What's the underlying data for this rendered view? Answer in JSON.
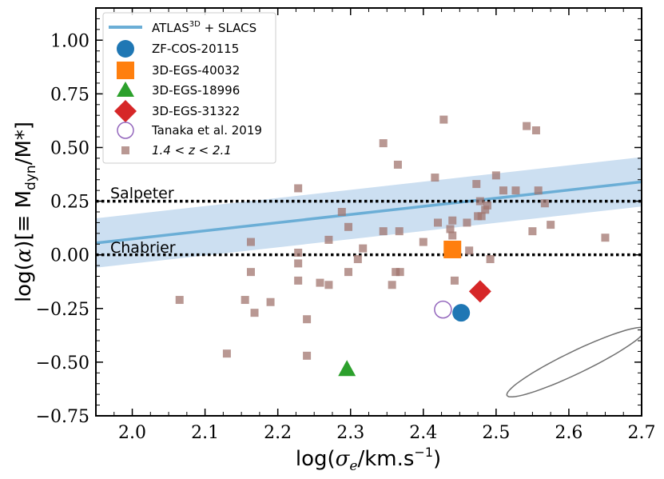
{
  "chart_data": {
    "type": "scatter",
    "x_axis": {
      "label": "log(σ_e/km.s⁻¹)",
      "range": [
        1.95,
        2.7
      ],
      "ticks": [
        2.0,
        2.1,
        2.2,
        2.3,
        2.4,
        2.5,
        2.6,
        2.7
      ],
      "tick_labels": [
        "2.0",
        "2.1",
        "2.2",
        "2.3",
        "2.4",
        "2.5",
        "2.6",
        "2.7"
      ]
    },
    "y_axis": {
      "label": "log(α)[≡ M_dyn/M*]",
      "range": [
        -0.75,
        1.15
      ],
      "ticks": [
        -0.75,
        -0.5,
        -0.25,
        0.0,
        0.25,
        0.5,
        0.75,
        1.0
      ],
      "tick_labels": [
        "−0.75",
        "−0.50",
        "−0.25",
        "0.00",
        "0.25",
        "0.50",
        "0.75",
        "1.00"
      ]
    },
    "reference_lines": [
      {
        "name": "Salpeter",
        "y": 0.25,
        "style": "dotted",
        "color": "#000000"
      },
      {
        "name": "Chabrier",
        "y": 0.0,
        "style": "dotted",
        "color": "#000000"
      }
    ],
    "fit": {
      "name": "ATLAS3D + SLACS",
      "x": [
        1.95,
        2.7
      ],
      "y": [
        0.055,
        0.34
      ],
      "band_halfwidth": 0.115,
      "line_color": "#6baed6",
      "band_color": "#c6dbef"
    },
    "series": [
      {
        "name": "ZF-COS-20115",
        "marker": "circle",
        "color": "#1f77b4",
        "points": [
          [
            2.452,
            -0.27
          ]
        ]
      },
      {
        "name": "3D-EGS-40032",
        "marker": "square",
        "color": "#ff7f0e",
        "points": [
          [
            2.44,
            0.025
          ]
        ]
      },
      {
        "name": "3D-EGS-18996",
        "marker": "triangle",
        "color": "#2ca02c",
        "points": [
          [
            2.295,
            -0.535
          ]
        ]
      },
      {
        "name": "3D-EGS-31322",
        "marker": "diamond",
        "color": "#d62728",
        "points": [
          [
            2.478,
            -0.17
          ]
        ]
      },
      {
        "name": "Tanaka et al. 2019",
        "marker": "open-circle",
        "color": "#9467bd",
        "points": [
          [
            2.427,
            -0.255
          ]
        ]
      },
      {
        "name": "1.4 < z < 2.1",
        "marker": "small-square",
        "color": "#a1766f",
        "points": [
          [
            2.065,
            -0.21
          ],
          [
            2.13,
            -0.46
          ],
          [
            2.155,
            -0.21
          ],
          [
            2.163,
            0.06
          ],
          [
            2.163,
            -0.08
          ],
          [
            2.168,
            -0.27
          ],
          [
            2.19,
            -0.22
          ],
          [
            2.228,
            0.31
          ],
          [
            2.228,
            0.01
          ],
          [
            2.228,
            -0.04
          ],
          [
            2.228,
            -0.12
          ],
          [
            2.24,
            -0.3
          ],
          [
            2.24,
            -0.47
          ],
          [
            2.258,
            -0.13
          ],
          [
            2.27,
            0.07
          ],
          [
            2.27,
            -0.14
          ],
          [
            2.288,
            0.2
          ],
          [
            2.297,
            0.13
          ],
          [
            2.297,
            -0.08
          ],
          [
            2.31,
            -0.02
          ],
          [
            2.317,
            0.03
          ],
          [
            2.345,
            0.52
          ],
          [
            2.345,
            0.11
          ],
          [
            2.357,
            -0.14
          ],
          [
            2.362,
            -0.08
          ],
          [
            2.365,
            0.42
          ],
          [
            2.367,
            0.11
          ],
          [
            2.368,
            -0.08
          ],
          [
            2.4,
            0.06
          ],
          [
            2.416,
            0.36
          ],
          [
            2.42,
            0.15
          ],
          [
            2.428,
            0.63
          ],
          [
            2.437,
            0.12
          ],
          [
            2.44,
            0.09
          ],
          [
            2.44,
            0.16
          ],
          [
            2.443,
            -0.12
          ],
          [
            2.46,
            0.15
          ],
          [
            2.463,
            0.02
          ],
          [
            2.473,
            0.33
          ],
          [
            2.475,
            0.18
          ],
          [
            2.478,
            0.25
          ],
          [
            2.48,
            0.18
          ],
          [
            2.485,
            0.21
          ],
          [
            2.488,
            0.23
          ],
          [
            2.492,
            -0.02
          ],
          [
            2.5,
            0.37
          ],
          [
            2.51,
            0.3
          ],
          [
            2.527,
            0.3
          ],
          [
            2.542,
            0.6
          ],
          [
            2.55,
            0.11
          ],
          [
            2.555,
            0.58
          ],
          [
            2.558,
            0.3
          ],
          [
            2.567,
            0.24
          ],
          [
            2.575,
            0.14
          ],
          [
            2.65,
            0.08
          ]
        ]
      }
    ],
    "legend": {
      "position": "top-left",
      "entries": [
        "ATLAS3D + SLACS",
        "ZF-COS-20115",
        "3D-EGS-40032",
        "3D-EGS-18996",
        "3D-EGS-31322",
        "Tanaka et al. 2019",
        "1.4 < z < 2.1"
      ]
    },
    "error_ellipse": {
      "center": [
        2.61,
        -0.5
      ],
      "semi_major_x": 0.095,
      "semi_major_y": 0.155,
      "color": "#707070"
    }
  },
  "legend_text": {
    "atlas_prefix": "ATLAS",
    "atlas_sup": "3D",
    "atlas_suffix": " + SLACS",
    "zf": "ZF-COS-20115",
    "egs40032": "3D-EGS-40032",
    "egs18996": "3D-EGS-18996",
    "egs31322": "3D-EGS-31322",
    "tanaka": "Tanaka et al. 2019",
    "redshift": "1.4 < z < 2.1"
  },
  "axis_text": {
    "x_prefix": "log(",
    "x_sigma": "σ",
    "x_sub": "e",
    "x_mid": "/km.s",
    "x_sup": "−1",
    "x_suffix": ")",
    "y_prefix": "log(",
    "y_alpha": "α",
    "y_mid": ")[≡ M",
    "y_sub": "dyn",
    "y_suffix": "/M*]"
  }
}
